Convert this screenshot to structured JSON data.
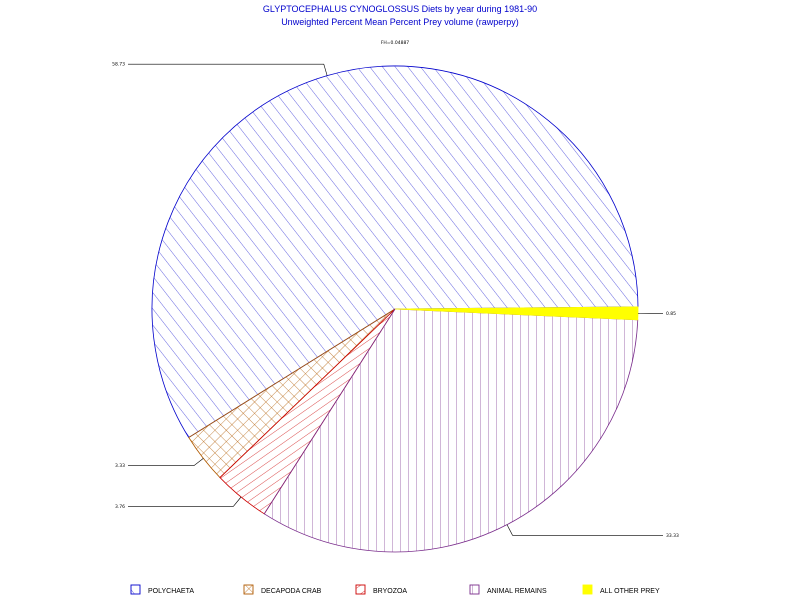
{
  "chart_data": {
    "type": "pie",
    "title": "GLYPTOCEPHALUS CYNOGLOSSUS Diets by year during 1981-90",
    "subtitle": "Unweighted Percent Mean Percent Prey  volume (rawperpy)",
    "note": "FH=0.04887",
    "slices": [
      {
        "name": "POLYCHAETA",
        "value": 58.73,
        "label": "58.73",
        "color": "#0000cc"
      },
      {
        "name": "DECAPODA CRAB",
        "value": 3.33,
        "label": "3.33",
        "color": "#b05a00"
      },
      {
        "name": "BRYOZOA",
        "value": 3.76,
        "label": "3.76",
        "color": "#cc0000"
      },
      {
        "name": "ANIMAL REMAINS",
        "value": 33.33,
        "label": "33.33",
        "color": "#7a2d8c"
      },
      {
        "name": "ALL OTHER PREY",
        "value": 0.85,
        "label": "0.85",
        "color": "#ffff00"
      }
    ]
  }
}
